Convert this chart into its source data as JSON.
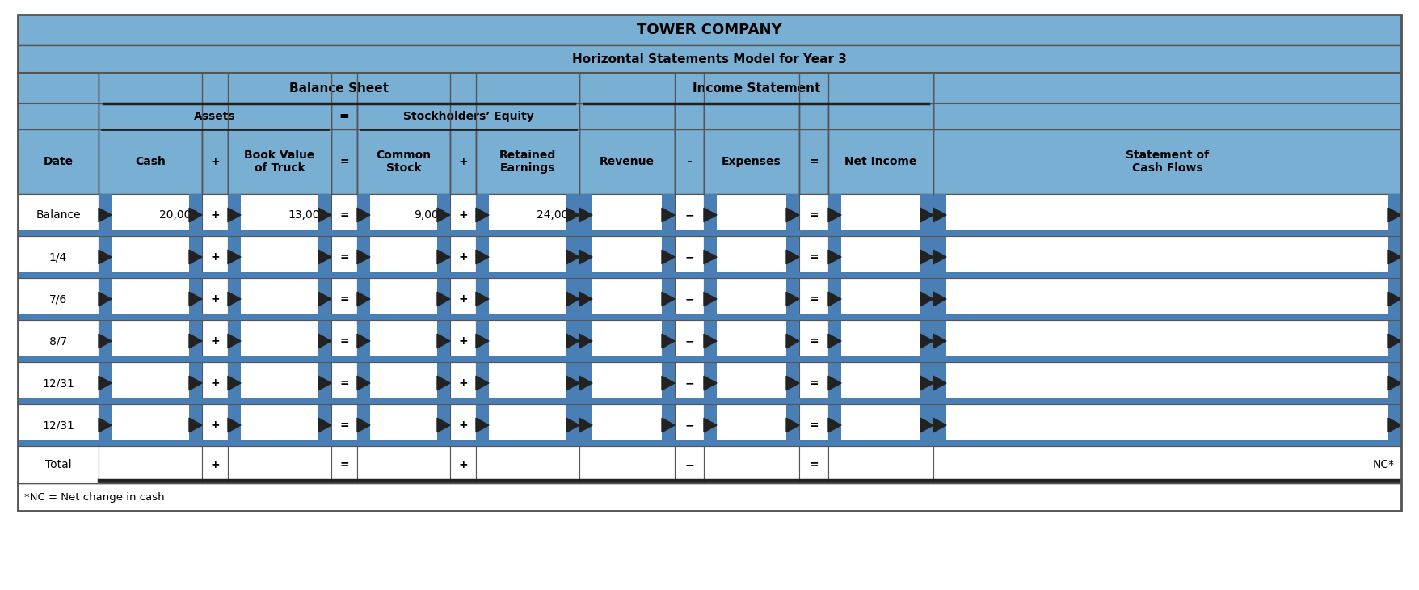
{
  "title": "TOWER COMPANY",
  "subtitle": "Horizontal Statements Model for Year 3",
  "header_bg": "#7aafd4",
  "white_bg": "#ffffff",
  "border_color": "#555555",
  "dark_border": "#222222",
  "arrow_color": "#4a7fb5",
  "blue_sep": "#4a7fb5",
  "title_fontsize": 13,
  "subtitle_fontsize": 11,
  "cell_fontsize": 10,
  "footnote": "*NC = Net change in cash",
  "rows": [
    "Balance",
    "1/4",
    "7/6",
    "8/7",
    "12/31",
    "12/31",
    "Total"
  ],
  "balance_values": {
    "Cash": "20,000",
    "BookValue": "13,000",
    "CommonStock": "9,000",
    "RetainedEarnings": "24,000"
  },
  "nc_label": "NC*",
  "col_label_texts": [
    "Date",
    "Cash",
    "+",
    "Book Value\nof Truck",
    "=",
    "Common\nStock",
    "+",
    "Retained\nEarnings",
    "Revenue",
    "-",
    "Expenses",
    "=",
    "Net Income",
    "Statement of\nCash Flows"
  ]
}
